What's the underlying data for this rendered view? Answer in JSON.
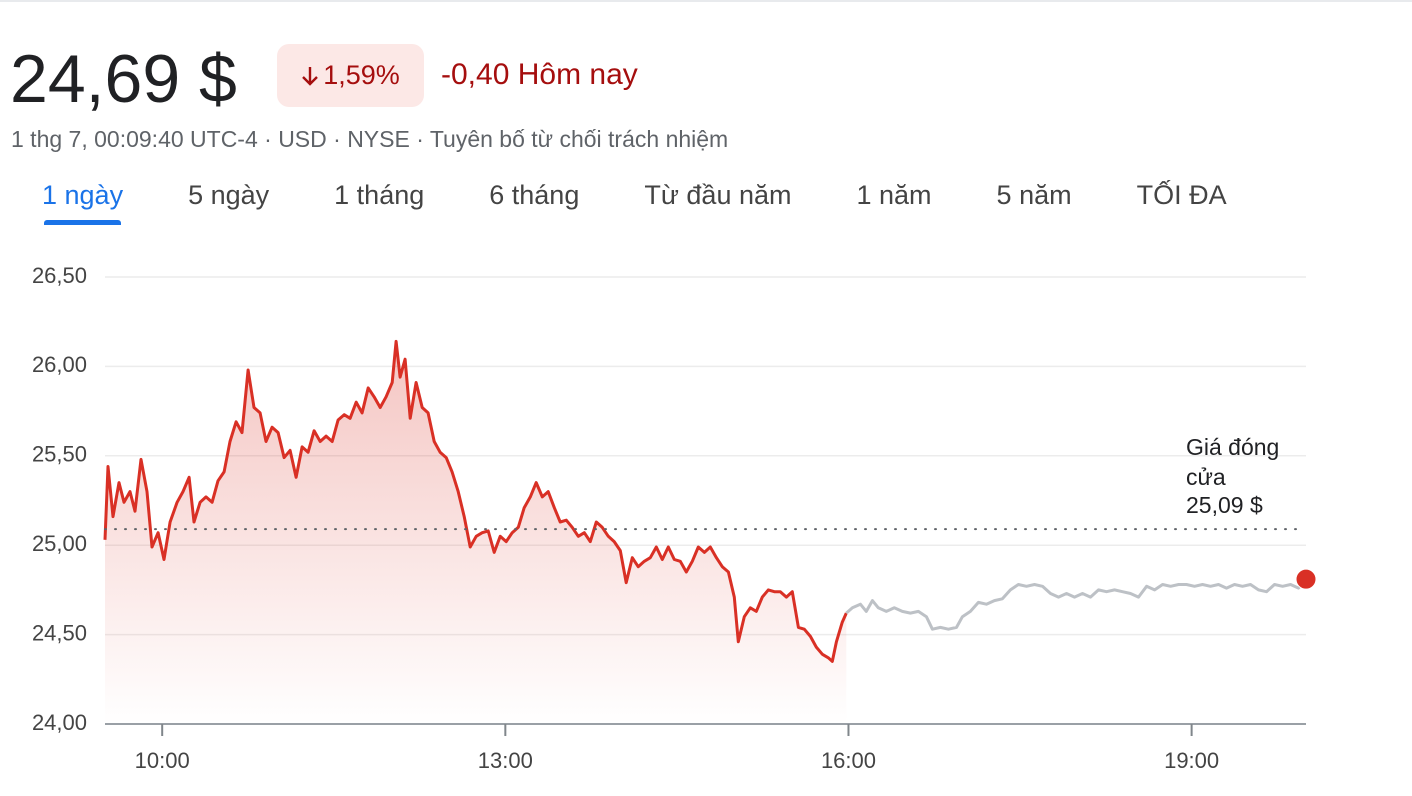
{
  "header": {
    "price": "24,69 $",
    "change_percent": "1,59%",
    "change_text": "-0,40 Hôm nay",
    "meta": "1 thg 7, 00:09:40 UTC-4 · USD · NYSE · Tuyên bố từ chối trách nhiệm"
  },
  "tabs": {
    "items": [
      "1 ngày",
      "5 ngày",
      "1 tháng",
      "6 tháng",
      "Từ đầu năm",
      "1 năm",
      "5 năm",
      "TỐI ĐA"
    ],
    "selected": 0
  },
  "chart_data": {
    "type": "line",
    "xlim": [
      9.5,
      20
    ],
    "ylim": [
      24,
      26.5
    ],
    "xticks": [
      {
        "value": 10,
        "label": "10:00"
      },
      {
        "value": 13,
        "label": "13:00"
      },
      {
        "value": 16,
        "label": "16:00"
      },
      {
        "value": 19,
        "label": "19:00"
      }
    ],
    "yticks": [
      {
        "value": 24,
        "label": "24,00"
      },
      {
        "value": 24.5,
        "label": "24,50"
      },
      {
        "value": 25,
        "label": "25,00"
      },
      {
        "value": 25.5,
        "label": "25,50"
      },
      {
        "value": 26,
        "label": "26,00"
      },
      {
        "value": 26.5,
        "label": "26,50"
      }
    ],
    "grid": true,
    "reference_line": {
      "value": 25.09,
      "label": "25,09 $",
      "title": "Giá đóng cửa"
    },
    "series": [
      {
        "color": "#d93025",
        "area": true,
        "x": [
          9.5,
          9.526,
          9.57,
          9.622,
          9.666,
          9.719,
          9.762,
          9.815,
          9.867,
          9.911,
          9.964,
          10.016,
          10.069,
          10.13,
          10.182,
          10.235,
          10.278,
          10.331,
          10.383,
          10.436,
          10.488,
          10.541,
          10.593,
          10.646,
          10.698,
          10.751,
          10.803,
          10.856,
          10.908,
          10.961,
          11.013,
          11.066,
          11.118,
          11.171,
          11.223,
          11.276,
          11.328,
          11.381,
          11.433,
          11.486,
          11.538,
          11.591,
          11.643,
          11.696,
          11.748,
          11.801,
          11.853,
          11.906,
          11.958,
          12.011,
          12.045,
          12.08,
          12.124,
          12.168,
          12.22,
          12.273,
          12.325,
          12.378,
          12.43,
          12.483,
          12.535,
          12.588,
          12.64,
          12.693,
          12.745,
          12.798,
          12.85,
          12.903,
          12.955,
          13.008,
          13.06,
          13.113,
          13.165,
          13.218,
          13.27,
          13.323,
          13.375,
          13.428,
          13.48,
          13.533,
          13.585,
          13.638,
          13.69,
          13.743,
          13.795,
          13.847,
          13.9,
          13.952,
          14.005,
          14.057,
          14.11,
          14.162,
          14.215,
          14.267,
          14.32,
          14.372,
          14.425,
          14.477,
          14.53,
          14.582,
          14.635,
          14.687,
          14.74,
          14.792,
          14.845,
          14.897,
          14.95,
          15.002,
          15.037,
          15.089,
          15.142,
          15.194,
          15.247,
          15.299,
          15.352,
          15.404,
          15.457,
          15.509,
          15.562,
          15.614,
          15.667,
          15.719,
          15.772,
          15.824,
          15.859,
          15.894,
          15.946,
          15.981
        ],
        "values": [
          25.03,
          25.44,
          25.16,
          25.35,
          25.24,
          25.3,
          25.19,
          25.48,
          25.3,
          24.99,
          25.07,
          24.92,
          25.13,
          25.24,
          25.3,
          25.38,
          25.13,
          25.24,
          25.27,
          25.24,
          25.36,
          25.41,
          25.58,
          25.69,
          25.63,
          25.98,
          25.77,
          25.74,
          25.58,
          25.66,
          25.63,
          25.49,
          25.53,
          25.38,
          25.55,
          25.52,
          25.64,
          25.58,
          25.61,
          25.58,
          25.7,
          25.73,
          25.71,
          25.8,
          25.74,
          25.88,
          25.83,
          25.77,
          25.83,
          25.91,
          26.14,
          25.94,
          26.04,
          25.71,
          25.91,
          25.77,
          25.74,
          25.58,
          25.52,
          25.49,
          25.41,
          25.3,
          25.16,
          24.99,
          25.05,
          25.07,
          25.08,
          24.96,
          25.05,
          25.02,
          25.07,
          25.1,
          25.21,
          25.27,
          25.35,
          25.27,
          25.3,
          25.21,
          25.13,
          25.14,
          25.1,
          25.05,
          25.07,
          25.02,
          25.13,
          25.1,
          25.05,
          25.02,
          24.97,
          24.79,
          24.93,
          24.88,
          24.91,
          24.93,
          24.99,
          24.92,
          24.99,
          24.92,
          24.91,
          24.85,
          24.91,
          24.99,
          24.96,
          24.99,
          24.93,
          24.88,
          24.85,
          24.71,
          24.46,
          24.6,
          24.65,
          24.63,
          24.71,
          24.75,
          24.74,
          24.74,
          24.71,
          24.74,
          24.54,
          24.53,
          24.49,
          24.43,
          24.39,
          24.37,
          24.35,
          24.46,
          24.57,
          24.62
        ]
      },
      {
        "color": "#bdc1c6",
        "area": false,
        "x": [
          15.981,
          16.034,
          16.104,
          16.156,
          16.209,
          16.261,
          16.331,
          16.401,
          16.471,
          16.541,
          16.611,
          16.681,
          16.734,
          16.804,
          16.874,
          16.944,
          16.996,
          17.066,
          17.136,
          17.206,
          17.276,
          17.346,
          17.416,
          17.486,
          17.556,
          17.626,
          17.696,
          17.766,
          17.836,
          17.906,
          17.976,
          18.046,
          18.116,
          18.186,
          18.256,
          18.326,
          18.396,
          18.466,
          18.536,
          18.606,
          18.676,
          18.746,
          18.816,
          18.886,
          18.955,
          19.025,
          19.095,
          19.165,
          19.235,
          19.305,
          19.375,
          19.445,
          19.515,
          19.585,
          19.655,
          19.725,
          19.795,
          19.865,
          19.935,
          20
        ],
        "values": [
          24.62,
          24.65,
          24.67,
          24.63,
          24.69,
          24.65,
          24.63,
          24.65,
          24.63,
          24.62,
          24.63,
          24.6,
          24.53,
          24.54,
          24.53,
          24.54,
          24.6,
          24.63,
          24.68,
          24.67,
          24.69,
          24.7,
          24.75,
          24.78,
          24.77,
          24.78,
          24.77,
          24.73,
          24.71,
          24.73,
          24.71,
          24.73,
          24.71,
          24.75,
          24.74,
          24.75,
          24.74,
          24.73,
          24.71,
          24.77,
          24.75,
          24.78,
          24.77,
          24.78,
          24.78,
          24.77,
          24.78,
          24.77,
          24.78,
          24.76,
          24.78,
          24.77,
          24.78,
          24.75,
          24.74,
          24.78,
          24.77,
          24.78,
          24.76,
          24.81
        ]
      }
    ]
  }
}
